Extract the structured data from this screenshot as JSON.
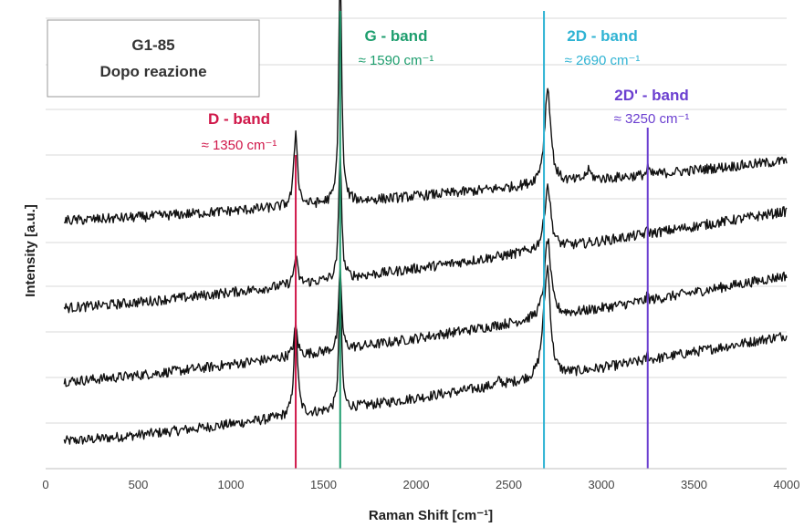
{
  "chart_data": {
    "type": "line",
    "title": "",
    "annotation_box": [
      "G1-85",
      "Dopo reazione"
    ],
    "xlabel": "Raman Shift [cm⁻¹]",
    "ylabel": "Intensity [a.u.]",
    "xlim": [
      0,
      4000
    ],
    "x_ticks": [
      "0",
      "500",
      "1000",
      "1500",
      "2000",
      "2500",
      "3000",
      "3500",
      "4000"
    ],
    "grid": "horizontal",
    "y_ticks_shown": false,
    "bands": [
      {
        "name": "D - band",
        "position": "≈ 1350 cm⁻¹",
        "x": 1350,
        "color": "#d0184a"
      },
      {
        "name": "G - band",
        "position": "≈ 1590 cm⁻¹",
        "x": 1590,
        "color": "#1e9e6e"
      },
      {
        "name": "2D - band",
        "position": "≈ 2690 cm⁻¹",
        "x": 2690,
        "color": "#2fb3d3"
      },
      {
        "name": "2D' - band",
        "position": "≈ 3250 cm⁻¹",
        "x": 3250,
        "color": "#6b3fd0"
      }
    ],
    "series": [
      {
        "baseline": [
          0.06,
          0.29
        ],
        "peaks": [
          [
            1350,
            0.2,
            12
          ],
          [
            1590,
            0.27,
            9
          ],
          [
            2690,
            0.06,
            20
          ],
          [
            2710,
            0.21,
            18
          ],
          [
            3250,
            0.015,
            5
          ],
          [
            2450,
            0.01,
            10
          ]
        ]
      },
      {
        "baseline": [
          0.19,
          0.42
        ],
        "peaks": [
          [
            1350,
            0.06,
            12
          ],
          [
            1590,
            0.18,
            9
          ],
          [
            2710,
            0.17,
            20
          ],
          [
            3250,
            0.015,
            5
          ]
        ]
      },
      {
        "baseline": [
          0.35,
          0.56
        ],
        "peaks": [
          [
            1350,
            0.06,
            12
          ],
          [
            1590,
            0.28,
            9
          ],
          [
            2710,
            0.14,
            20
          ],
          [
            3250,
            0.015,
            5
          ]
        ]
      },
      {
        "baseline": [
          0.54,
          0.67
        ],
        "peaks": [
          [
            1350,
            0.16,
            12
          ],
          [
            1590,
            0.53,
            9
          ],
          [
            2710,
            0.21,
            20
          ],
          [
            2930,
            0.02,
            18
          ],
          [
            3250,
            0.02,
            5
          ]
        ]
      }
    ]
  }
}
